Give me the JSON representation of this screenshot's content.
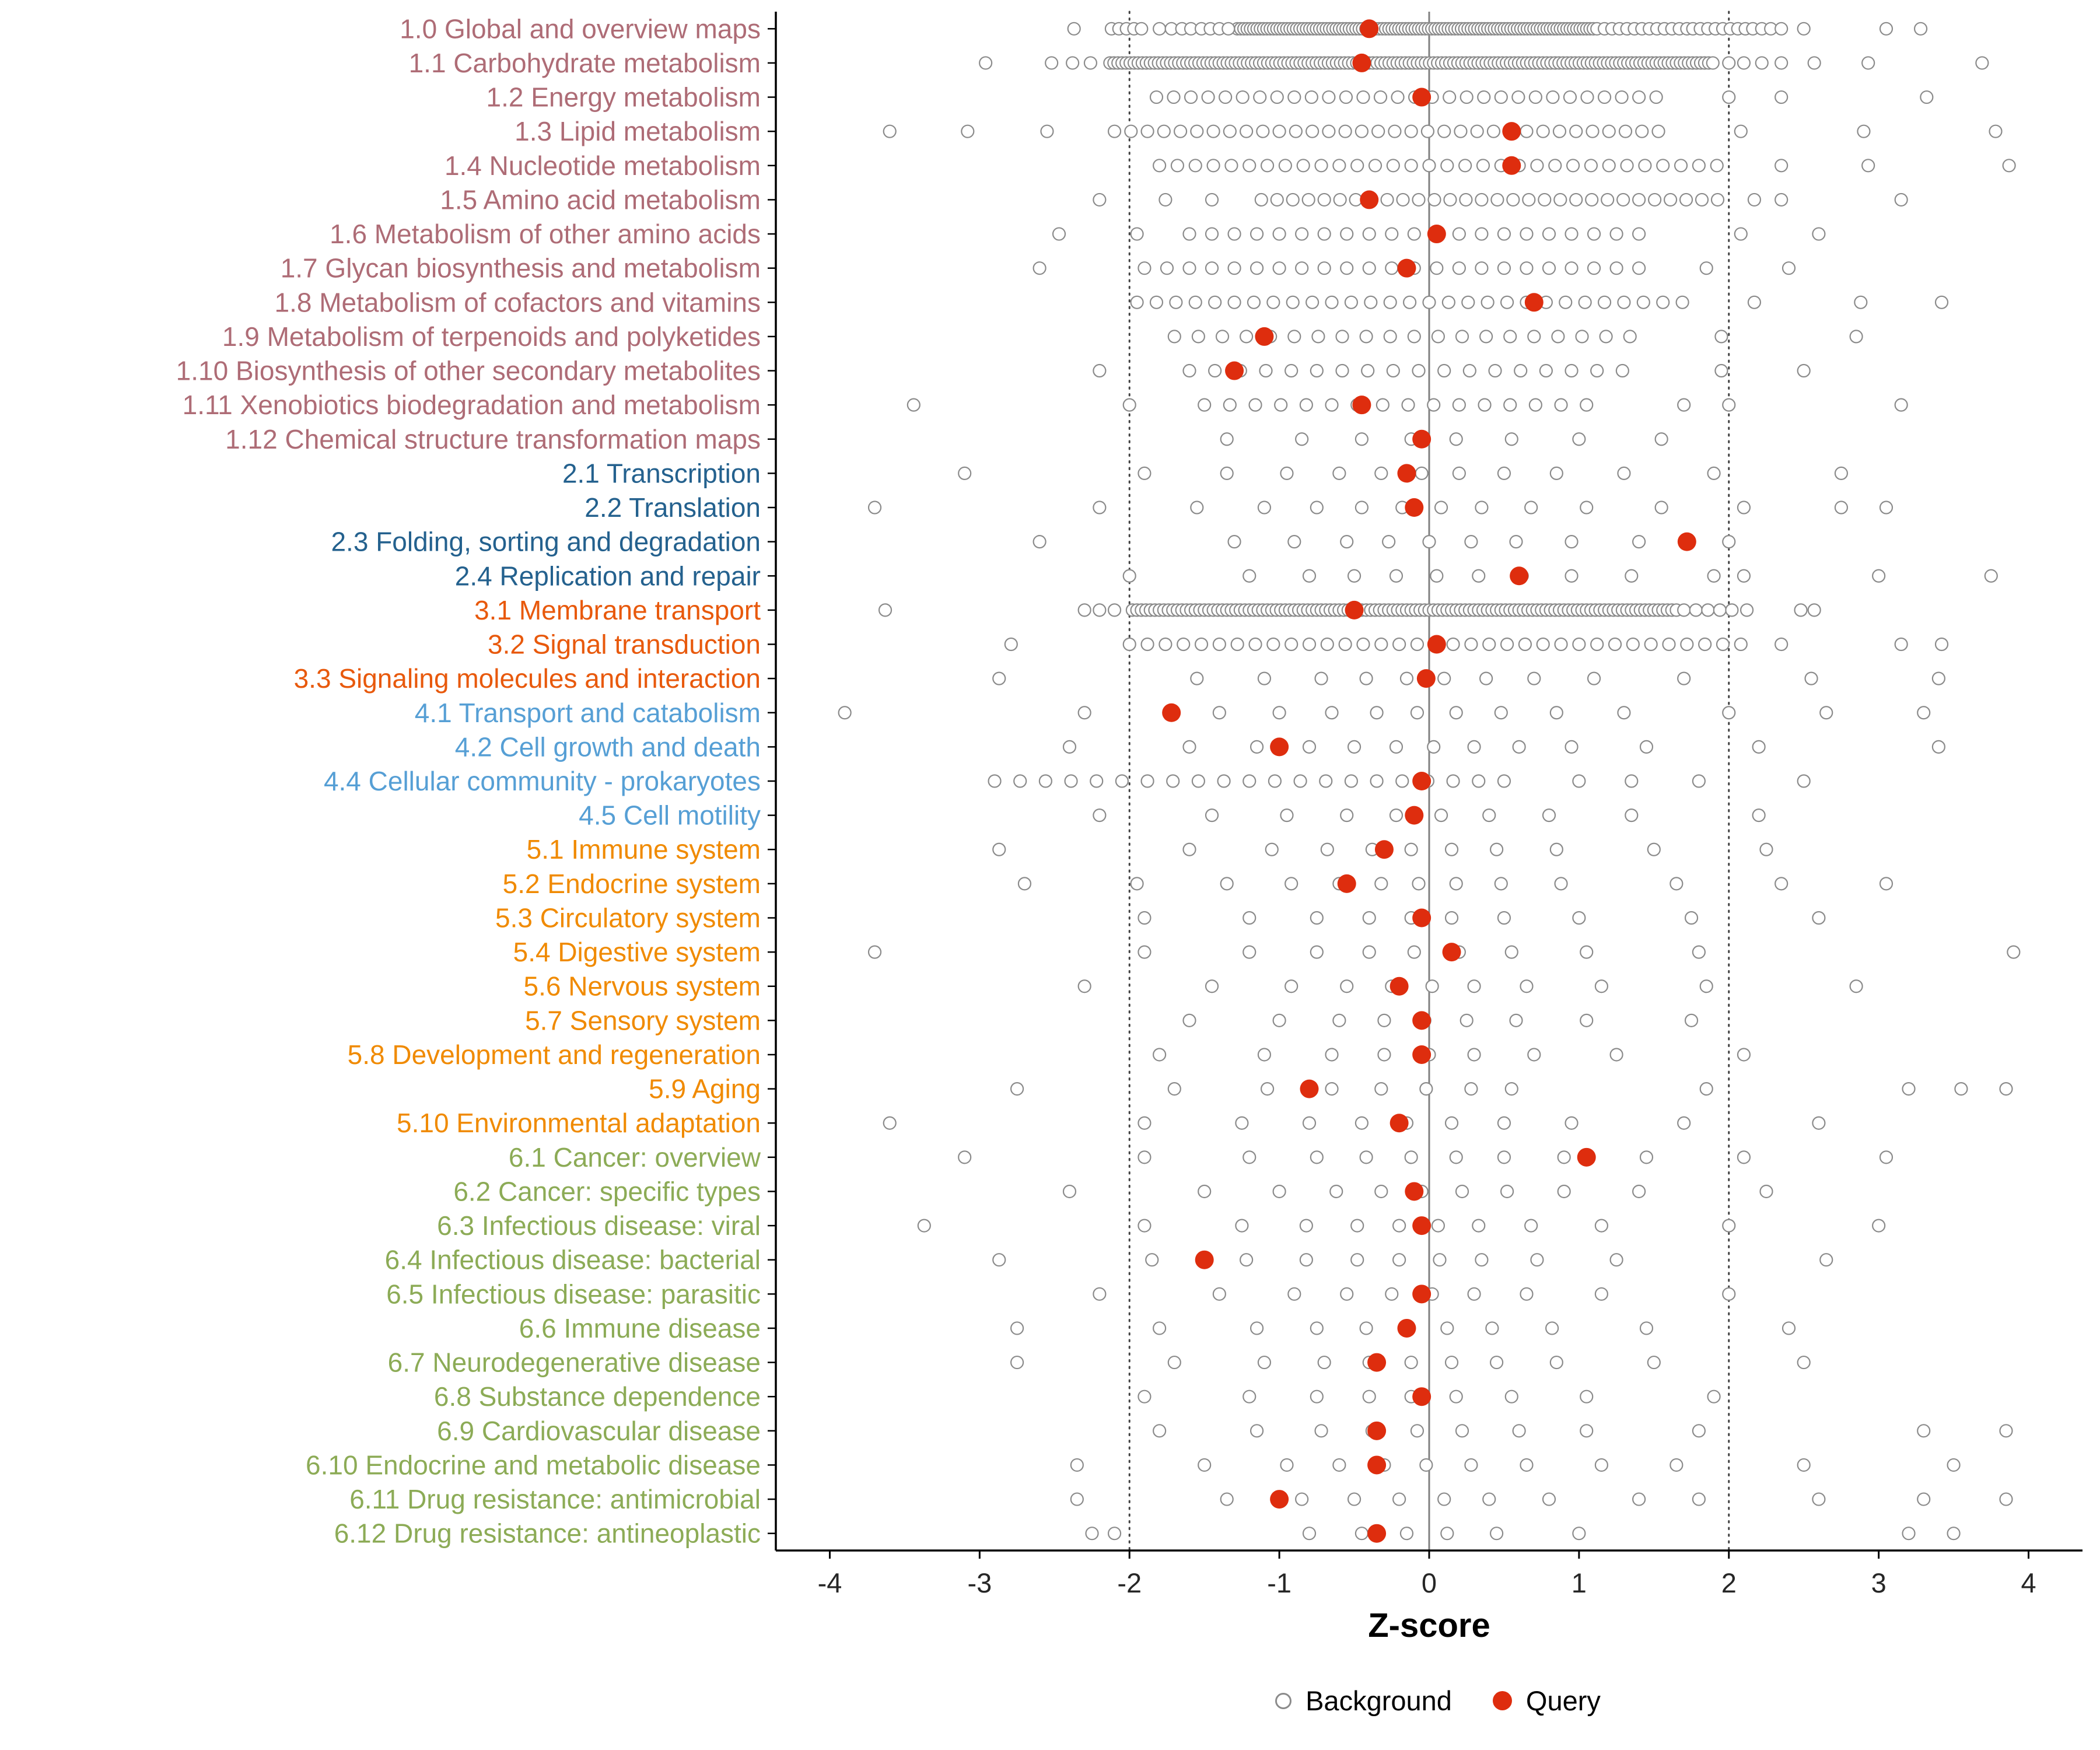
{
  "chart_data": {
    "type": "scatter",
    "title": "",
    "xlabel": "Z-score",
    "ylabel": "",
    "xlim": [
      -4.36,
      4.36
    ],
    "x_ticks": [
      -4,
      -3,
      -2,
      -1,
      0,
      1,
      2,
      3,
      4
    ],
    "grid": false,
    "legend_position": "bottom",
    "reference_lines": {
      "solid": [
        0
      ],
      "dotted": [
        -2,
        2
      ]
    },
    "background_color": "#8b8b8b",
    "query_color": "#de2d0e",
    "group_colors": {
      "1": "#ae6c76",
      "2": "#24618e",
      "3": "#e8590c",
      "4": "#569fd5",
      "5": "#f08a00",
      "6": "#8cab56"
    },
    "legend": [
      {
        "label": "Background",
        "marker": "open-circle",
        "color": "#8b8b8b"
      },
      {
        "label": "Query",
        "marker": "filled-circle",
        "color": "#de2d0e"
      }
    ],
    "rows": [
      {
        "label": "1.0 Global and overview maps",
        "group": "1",
        "query": -0.4,
        "bg_dense": [
          {
            "from": -1.28,
            "to": 1.1,
            "step": 0.022
          },
          {
            "from": 1.12,
            "to": 1.72,
            "step": 0.05
          }
        ],
        "bg": [
          -2.37,
          -2.12,
          -2.07,
          -2.02,
          -1.97,
          -1.92,
          -1.8,
          -1.72,
          -1.65,
          -1.59,
          -1.52,
          -1.46,
          -1.4,
          -1.34,
          1.76,
          1.81,
          1.86,
          1.91,
          1.96,
          2.01,
          2.06,
          2.11,
          2.16,
          2.22,
          2.28,
          2.35,
          2.5,
          3.05,
          3.28
        ]
      },
      {
        "label": "1.1 Carbohydrate metabolism",
        "group": "1",
        "query": -0.45,
        "bg_dense": [
          {
            "from": -2.13,
            "to": 1.9,
            "step": 0.027
          }
        ],
        "bg": [
          -2.96,
          -2.52,
          -2.38,
          -2.26,
          2.0,
          2.1,
          2.22,
          2.35,
          2.57,
          2.93,
          3.69
        ]
      },
      {
        "label": "1.2 Energy metabolism",
        "group": "1",
        "query": -0.05,
        "bg_dense": [
          {
            "from": -1.82,
            "to": 1.6,
            "step": 0.115
          }
        ],
        "bg": [
          2.0,
          2.35,
          3.32
        ]
      },
      {
        "label": "1.3 Lipid metabolism",
        "group": "1",
        "query": 0.55,
        "bg_dense": [
          {
            "from": -2.1,
            "to": 1.62,
            "step": 0.11
          }
        ],
        "bg": [
          -3.6,
          -3.08,
          -2.55,
          2.08,
          2.9,
          3.78
        ]
      },
      {
        "label": "1.4 Nucleotide metabolism",
        "group": "1",
        "query": 0.55,
        "bg_dense": [
          {
            "from": -1.8,
            "to": 1.98,
            "step": 0.12
          }
        ],
        "bg": [
          2.35,
          2.93,
          3.87
        ]
      },
      {
        "label": "1.5 Amino acid metabolism",
        "group": "1",
        "query": -0.4,
        "bg_dense": [
          {
            "from": -1.12,
            "to": 2.0,
            "step": 0.105
          }
        ],
        "bg": [
          -2.2,
          -1.76,
          -1.45,
          2.17,
          2.35,
          3.15
        ]
      },
      {
        "label": "1.6 Metabolism of other amino acids",
        "group": "1",
        "query": 0.05,
        "bg_dense": [
          {
            "from": -1.6,
            "to": 1.5,
            "step": 0.15
          }
        ],
        "bg": [
          -2.47,
          -1.95,
          2.08,
          2.6
        ]
      },
      {
        "label": "1.7 Glycan biosynthesis and metabolism",
        "group": "1",
        "query": -0.15,
        "bg_dense": [
          {
            "from": -1.9,
            "to": 1.4,
            "step": 0.15
          }
        ],
        "bg": [
          -2.6,
          1.85,
          2.4
        ]
      },
      {
        "label": "1.8 Metabolism of cofactors and vitamins",
        "group": "1",
        "query": 0.7,
        "bg_dense": [
          {
            "from": -1.95,
            "to": 1.8,
            "step": 0.13
          }
        ],
        "bg": [
          2.17,
          2.88,
          3.42
        ]
      },
      {
        "label": "1.9 Metabolism of terpenoids and polyketides",
        "group": "1",
        "query": -1.1,
        "bg_dense": [
          {
            "from": -1.7,
            "to": 1.4,
            "step": 0.16
          }
        ],
        "bg": [
          1.95,
          2.85
        ]
      },
      {
        "label": "1.10 Biosynthesis of other secondary metabolites",
        "group": "1",
        "query": -1.3,
        "bg_dense": [
          {
            "from": -1.6,
            "to": 1.3,
            "step": 0.17
          }
        ],
        "bg": [
          -2.2,
          1.95,
          2.5
        ]
      },
      {
        "label": "1.11 Xenobiotics biodegradation and metabolism",
        "group": "1",
        "query": -0.45,
        "bg_dense": [
          {
            "from": -1.5,
            "to": 1.2,
            "step": 0.17
          }
        ],
        "bg": [
          -3.44,
          -2.0,
          1.7,
          2.0,
          3.15
        ]
      },
      {
        "label": "1.12 Chemical structure transformation maps",
        "group": "1",
        "query": -0.05,
        "bg": [
          -1.35,
          -0.85,
          -0.45,
          -0.12,
          0.18,
          0.55,
          1.0,
          1.55
        ]
      },
      {
        "label": "2.1 Transcription",
        "group": "2",
        "query": -0.15,
        "bg": [
          -3.1,
          -1.9,
          -1.35,
          -0.95,
          -0.6,
          -0.32,
          -0.05,
          0.2,
          0.5,
          0.85,
          1.3,
          1.9,
          2.75
        ]
      },
      {
        "label": "2.2 Translation",
        "group": "2",
        "query": -0.1,
        "bg": [
          -3.7,
          -2.2,
          -1.55,
          -1.1,
          -0.75,
          -0.45,
          -0.18,
          0.08,
          0.35,
          0.68,
          1.05,
          1.55,
          2.1,
          2.75,
          3.05
        ]
      },
      {
        "label": "2.3 Folding, sorting and degradation",
        "group": "2",
        "query": 1.72,
        "bg": [
          -2.6,
          -1.3,
          -0.9,
          -0.55,
          -0.27,
          0.0,
          0.28,
          0.58,
          0.95,
          1.4,
          2.0
        ]
      },
      {
        "label": "2.4 Replication and repair",
        "group": "2",
        "query": 0.6,
        "bg": [
          -2.0,
          -1.2,
          -0.8,
          -0.5,
          -0.22,
          0.05,
          0.33,
          0.62,
          0.95,
          1.35,
          1.9,
          2.1,
          3.0,
          3.75
        ]
      },
      {
        "label": "3.1 Membrane transport",
        "group": "3",
        "query": -0.5,
        "bg_dense": [
          {
            "from": -1.98,
            "to": 1.65,
            "step": 0.03
          }
        ],
        "bg": [
          -3.63,
          -2.3,
          -2.2,
          -2.1,
          1.7,
          1.78,
          1.86,
          1.94,
          2.02,
          2.12,
          2.48,
          2.57
        ]
      },
      {
        "label": "3.2 Signal transduction",
        "group": "3",
        "query": 0.05,
        "bg_dense": [
          {
            "from": -2.0,
            "to": 2.08,
            "step": 0.12
          }
        ],
        "bg": [
          -2.79,
          2.35,
          3.15,
          3.42
        ]
      },
      {
        "label": "3.3 Signaling molecules and interaction",
        "group": "3",
        "query": -0.02,
        "bg": [
          -2.87,
          -1.55,
          -1.1,
          -0.72,
          -0.42,
          -0.15,
          0.1,
          0.38,
          0.7,
          1.1,
          1.7,
          2.55,
          3.4
        ]
      },
      {
        "label": "4.1 Transport and catabolism",
        "group": "4",
        "query": -1.72,
        "bg": [
          -3.9,
          -2.3,
          -1.4,
          -1.0,
          -0.65,
          -0.35,
          -0.08,
          0.18,
          0.48,
          0.85,
          1.3,
          2.0,
          2.65,
          3.3
        ]
      },
      {
        "label": "4.2 Cell growth and death",
        "group": "4",
        "query": -1.0,
        "bg": [
          -2.4,
          -1.6,
          -1.15,
          -0.8,
          -0.5,
          -0.22,
          0.03,
          0.3,
          0.6,
          0.95,
          1.45,
          2.2,
          3.4
        ]
      },
      {
        "label": "4.4 Cellular community - prokaryotes",
        "group": "4",
        "query": -0.05,
        "bg_dense": [
          {
            "from": -2.9,
            "to": 0.65,
            "step": 0.17
          }
        ],
        "bg": [
          1.0,
          1.35,
          1.8,
          2.5
        ]
      },
      {
        "label": "4.5 Cell motility",
        "group": "4",
        "query": -0.1,
        "bg": [
          -2.2,
          -1.45,
          -0.95,
          -0.55,
          -0.22,
          0.08,
          0.4,
          0.8,
          1.35,
          2.2
        ]
      },
      {
        "label": "5.1 Immune system",
        "group": "5",
        "query": -0.3,
        "bg": [
          -2.87,
          -1.6,
          -1.05,
          -0.68,
          -0.38,
          -0.12,
          0.15,
          0.45,
          0.85,
          1.5,
          2.25
        ]
      },
      {
        "label": "5.2 Endocrine system",
        "group": "5",
        "query": -0.55,
        "bg": [
          -2.7,
          -1.95,
          -1.35,
          -0.92,
          -0.6,
          -0.32,
          -0.07,
          0.18,
          0.48,
          0.88,
          1.65,
          2.35,
          3.05
        ]
      },
      {
        "label": "5.3 Circulatory system",
        "group": "5",
        "query": -0.05,
        "bg": [
          -1.9,
          -1.2,
          -0.75,
          -0.4,
          -0.12,
          0.15,
          0.5,
          1.0,
          1.75,
          2.6
        ]
      },
      {
        "label": "5.4 Digestive system",
        "group": "5",
        "query": 0.15,
        "bg": [
          -3.7,
          -1.9,
          -1.2,
          -0.75,
          -0.4,
          -0.1,
          0.2,
          0.55,
          1.05,
          1.8,
          3.9
        ]
      },
      {
        "label": "5.6 Nervous system",
        "group": "5",
        "query": -0.2,
        "bg": [
          -2.3,
          -1.45,
          -0.92,
          -0.55,
          -0.25,
          0.02,
          0.3,
          0.65,
          1.15,
          1.85,
          2.85
        ]
      },
      {
        "label": "5.7 Sensory system",
        "group": "5",
        "query": -0.05,
        "bg": [
          -1.6,
          -1.0,
          -0.6,
          -0.3,
          -0.03,
          0.25,
          0.58,
          1.05,
          1.75
        ]
      },
      {
        "label": "5.8 Development and regeneration",
        "group": "5",
        "query": -0.05,
        "bg": [
          -1.8,
          -1.1,
          -0.65,
          -0.3,
          0.0,
          0.3,
          0.7,
          1.25,
          2.1
        ]
      },
      {
        "label": "5.9 Aging",
        "group": "5",
        "query": -0.8,
        "bg": [
          -2.75,
          -1.7,
          -1.08,
          -0.65,
          -0.32,
          -0.02,
          0.28,
          0.55,
          1.85,
          3.2,
          3.55,
          3.85
        ]
      },
      {
        "label": "5.10 Environmental adaptation",
        "group": "5",
        "query": -0.2,
        "bg": [
          -3.6,
          -1.9,
          -1.25,
          -0.8,
          -0.45,
          -0.15,
          0.15,
          0.5,
          0.95,
          1.7,
          2.6
        ]
      },
      {
        "label": "6.1 Cancer: overview",
        "group": "6",
        "query": 1.05,
        "bg": [
          -3.1,
          -1.9,
          -1.2,
          -0.75,
          -0.42,
          -0.12,
          0.18,
          0.5,
          0.9,
          1.45,
          2.1,
          3.05
        ]
      },
      {
        "label": "6.2 Cancer: specific types",
        "group": "6",
        "query": -0.1,
        "bg": [
          -2.4,
          -1.5,
          -1.0,
          -0.62,
          -0.32,
          -0.05,
          0.22,
          0.52,
          0.9,
          1.4,
          2.25
        ]
      },
      {
        "label": "6.3 Infectious disease: viral",
        "group": "6",
        "query": -0.05,
        "bg": [
          -3.37,
          -1.9,
          -1.25,
          -0.82,
          -0.48,
          -0.2,
          0.06,
          0.33,
          0.68,
          1.15,
          2.0,
          3.0
        ]
      },
      {
        "label": "6.4 Infectious disease: bacterial",
        "group": "6",
        "query": -1.5,
        "bg": [
          -2.87,
          -1.85,
          -1.22,
          -0.82,
          -0.48,
          -0.2,
          0.07,
          0.35,
          0.72,
          1.25,
          2.65
        ]
      },
      {
        "label": "6.5 Infectious disease: parasitic",
        "group": "6",
        "query": -0.05,
        "bg": [
          -2.2,
          -1.4,
          -0.9,
          -0.55,
          -0.25,
          0.02,
          0.3,
          0.65,
          1.15,
          2.0
        ]
      },
      {
        "label": "6.6 Immune disease",
        "group": "6",
        "query": -0.15,
        "bg": [
          -2.75,
          -1.8,
          -1.15,
          -0.75,
          -0.42,
          -0.15,
          0.12,
          0.42,
          0.82,
          1.45,
          2.4
        ]
      },
      {
        "label": "6.7 Neurodegenerative disease",
        "group": "6",
        "query": -0.35,
        "bg": [
          -2.75,
          -1.7,
          -1.1,
          -0.7,
          -0.4,
          -0.12,
          0.15,
          0.45,
          0.85,
          1.5,
          2.5
        ]
      },
      {
        "label": "6.8 Substance dependence",
        "group": "6",
        "query": -0.05,
        "bg": [
          -1.9,
          -1.2,
          -0.75,
          -0.4,
          -0.12,
          0.18,
          0.55,
          1.05,
          1.9
        ]
      },
      {
        "label": "6.9 Cardiovascular disease",
        "group": "6",
        "query": -0.35,
        "bg": [
          -1.8,
          -1.15,
          -0.72,
          -0.38,
          -0.08,
          0.22,
          0.6,
          1.05,
          1.8,
          3.3,
          3.85
        ]
      },
      {
        "label": "6.10 Endocrine and metabolic disease",
        "group": "6",
        "query": -0.35,
        "bg": [
          -2.35,
          -1.5,
          -0.95,
          -0.6,
          -0.3,
          -0.02,
          0.28,
          0.65,
          1.15,
          1.65,
          2.5,
          3.5
        ]
      },
      {
        "label": "6.11 Drug resistance: antimicrobial",
        "group": "6",
        "query": -1.0,
        "bg": [
          -2.35,
          -1.35,
          -0.85,
          -0.5,
          -0.2,
          0.1,
          0.4,
          0.8,
          1.4,
          1.8,
          2.6,
          3.3,
          3.85
        ]
      },
      {
        "label": "6.12 Drug resistance: antineoplastic",
        "group": "6",
        "query": -0.35,
        "bg": [
          -2.25,
          -2.1,
          -0.8,
          -0.45,
          -0.15,
          0.12,
          0.45,
          1.0,
          3.2,
          3.5
        ]
      }
    ]
  }
}
